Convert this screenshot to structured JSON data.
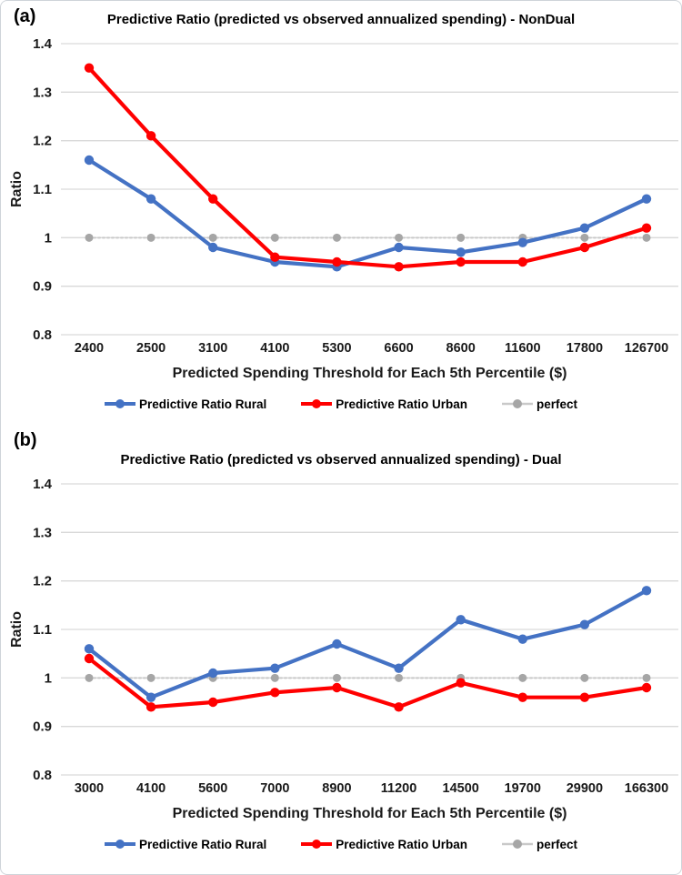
{
  "figure": {
    "panels": [
      {
        "label": "(a)"
      },
      {
        "label": "(b)"
      }
    ]
  },
  "chart_data": [
    {
      "type": "line",
      "title": "Predictive Ratio (predicted vs observed annualized spending) - NonDual",
      "xlabel": "Predicted Spending Threshold for Each 5th Percentile ($)",
      "ylabel": "Ratio",
      "ylim": [
        0.8,
        1.4
      ],
      "ytick_labels": [
        "0.8",
        "0.9",
        "1",
        "1.1",
        "1.2",
        "1.3",
        "1.4"
      ],
      "ytick_values": [
        0.8,
        0.9,
        1.0,
        1.1,
        1.2,
        1.3,
        1.4
      ],
      "grid": true,
      "legend_position": "bottom",
      "categories": [
        "2400",
        "2500",
        "3100",
        "4100",
        "5300",
        "6600",
        "8600",
        "11600",
        "17800",
        "126700"
      ],
      "series": [
        {
          "name": "Predictive Ratio Rural",
          "color": "#4472C4",
          "line_style": "solid",
          "values": [
            1.16,
            1.08,
            0.98,
            0.95,
            0.94,
            0.98,
            0.97,
            0.99,
            1.02,
            1.08
          ]
        },
        {
          "name": "Predictive Ratio Urban",
          "color": "#FF0000",
          "line_style": "solid",
          "values": [
            1.35,
            1.21,
            1.08,
            0.96,
            0.95,
            0.94,
            0.95,
            0.95,
            0.98,
            1.02
          ]
        },
        {
          "name": "perfect",
          "color": "#A6A6A6",
          "line_color": "#C9C9C9",
          "line_style": "dotted",
          "values": [
            1.0,
            1.0,
            1.0,
            1.0,
            1.0,
            1.0,
            1.0,
            1.0,
            1.0,
            1.0
          ]
        }
      ]
    },
    {
      "type": "line",
      "title": "Predictive Ratio (predicted vs observed annualized spending) - Dual",
      "xlabel": "Predicted Spending Threshold for Each 5th Percentile ($)",
      "ylabel": "Ratio",
      "ylim": [
        0.8,
        1.4
      ],
      "ytick_labels": [
        "0.8",
        "0.9",
        "1",
        "1.1",
        "1.2",
        "1.3",
        "1.4"
      ],
      "ytick_values": [
        0.8,
        0.9,
        1.0,
        1.1,
        1.2,
        1.3,
        1.4
      ],
      "grid": true,
      "legend_position": "bottom",
      "categories": [
        "3000",
        "4100",
        "5600",
        "7000",
        "8900",
        "11200",
        "14500",
        "19700",
        "29900",
        "166300"
      ],
      "series": [
        {
          "name": "Predictive Ratio Rural",
          "color": "#4472C4",
          "line_style": "solid",
          "values": [
            1.06,
            0.96,
            1.01,
            1.02,
            1.07,
            1.02,
            1.12,
            1.08,
            1.11,
            1.18
          ]
        },
        {
          "name": "Predictive Ratio Urban",
          "color": "#FF0000",
          "line_style": "solid",
          "values": [
            1.04,
            0.94,
            0.95,
            0.97,
            0.98,
            0.94,
            0.99,
            0.96,
            0.96,
            0.98
          ]
        },
        {
          "name": "perfect",
          "color": "#A6A6A6",
          "line_color": "#C9C9C9",
          "line_style": "dotted",
          "values": [
            1.0,
            1.0,
            1.0,
            1.0,
            1.0,
            1.0,
            1.0,
            1.0,
            1.0,
            1.0
          ]
        }
      ]
    }
  ],
  "style_colors": {
    "gridline": "#D9D9D9",
    "rural_blue": "#4472C4",
    "urban_red": "#FF0000",
    "perfect_gray": "#A6A6A6"
  }
}
